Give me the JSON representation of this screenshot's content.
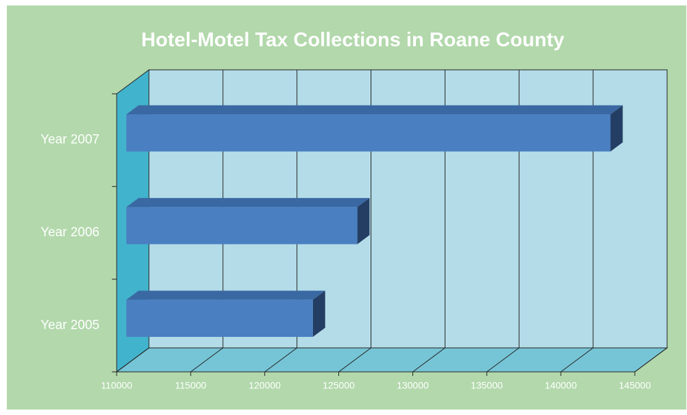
{
  "chart_data": {
    "type": "bar3d_horizontal",
    "title": "Hotel-Motel Tax Collections in Roane County",
    "categories": [
      "Year 2005",
      "Year 2006",
      "Year 2007"
    ],
    "values": [
      122600,
      125600,
      142700
    ],
    "color": "#4a7fc1",
    "xlim": [
      110000,
      145000
    ],
    "xticks": [
      110000,
      115000,
      120000,
      125000,
      130000,
      135000,
      140000,
      145000
    ],
    "grid": true
  }
}
